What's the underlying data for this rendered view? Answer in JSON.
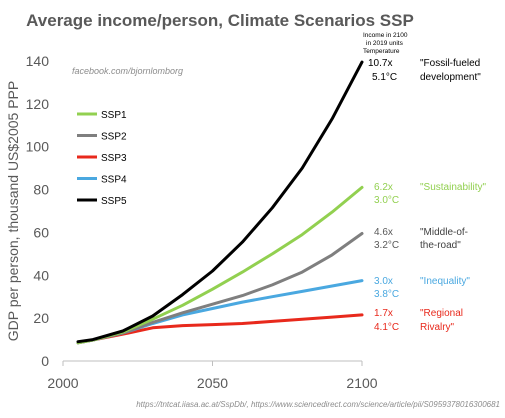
{
  "chart_data": {
    "type": "line",
    "title": "Average income/person, Climate Scenarios SSP",
    "ylabel": "GDP per person, thousand US$2005 PPP",
    "xlabel": "",
    "watermark": "facebook.com/bjornlomborg",
    "source": "https://tntcat.iiasa.ac.at/SspDb/, https://www.sciencedirect.com/science/article/pii/S0959378016300681",
    "header_note": [
      "Income in 2100",
      "in 2019 units",
      "Temperature"
    ],
    "xlim": [
      2000,
      2100
    ],
    "ylim": [
      0,
      140
    ],
    "xticks": [
      2000,
      2050,
      2100
    ],
    "yticks": [
      0,
      20,
      40,
      60,
      80,
      100,
      120,
      140
    ],
    "grid": false,
    "legend_position": "top-left",
    "x": [
      2005,
      2010,
      2020,
      2030,
      2040,
      2050,
      2060,
      2070,
      2080,
      2090,
      2100
    ],
    "series": [
      {
        "name": "SSP1",
        "color": "#92d050",
        "values": [
          8.5,
          9.8,
          13.5,
          19.5,
          26.0,
          33.5,
          41.5,
          50.0,
          59.0,
          69.5,
          81.0
        ],
        "multiplier": "6.2x",
        "temperature": "3.0°C",
        "scenario": "\"Sustainability\""
      },
      {
        "name": "SSP2",
        "color": "#7f7f7f",
        "values": [
          8.5,
          9.8,
          13.0,
          18.0,
          22.5,
          26.5,
          30.5,
          35.5,
          41.5,
          49.5,
          59.5
        ],
        "multiplier": "4.6x",
        "temperature": "3.2°C",
        "scenario_lines": [
          "\"Middle-of-",
          "the-road\""
        ]
      },
      {
        "name": "SSP3",
        "color": "#e8291c",
        "values": [
          8.5,
          9.8,
          12.5,
          15.5,
          16.5,
          17.0,
          17.5,
          18.5,
          19.5,
          20.5,
          21.5
        ],
        "multiplier": "1.7x",
        "temperature": "4.1°C",
        "scenario_lines": [
          "\"Regional",
          "Rivalry\""
        ]
      },
      {
        "name": "SSP4",
        "color": "#4aa8e0",
        "values": [
          8.5,
          9.8,
          13.0,
          17.5,
          21.5,
          24.5,
          27.5,
          30.0,
          32.5,
          35.0,
          37.5
        ],
        "multiplier": "3.0x",
        "temperature": "3.8°C",
        "scenario": "\"Inequality\""
      },
      {
        "name": "SSP5",
        "color": "#000000",
        "values": [
          9.0,
          10.0,
          14.0,
          21.0,
          31.0,
          42.0,
          55.5,
          71.5,
          90.0,
          113.0,
          139.5
        ],
        "multiplier": "10.7x",
        "temperature": "5.1°C",
        "scenario_lines": [
          "\"Fossil-fueled",
          "development\""
        ]
      }
    ]
  }
}
